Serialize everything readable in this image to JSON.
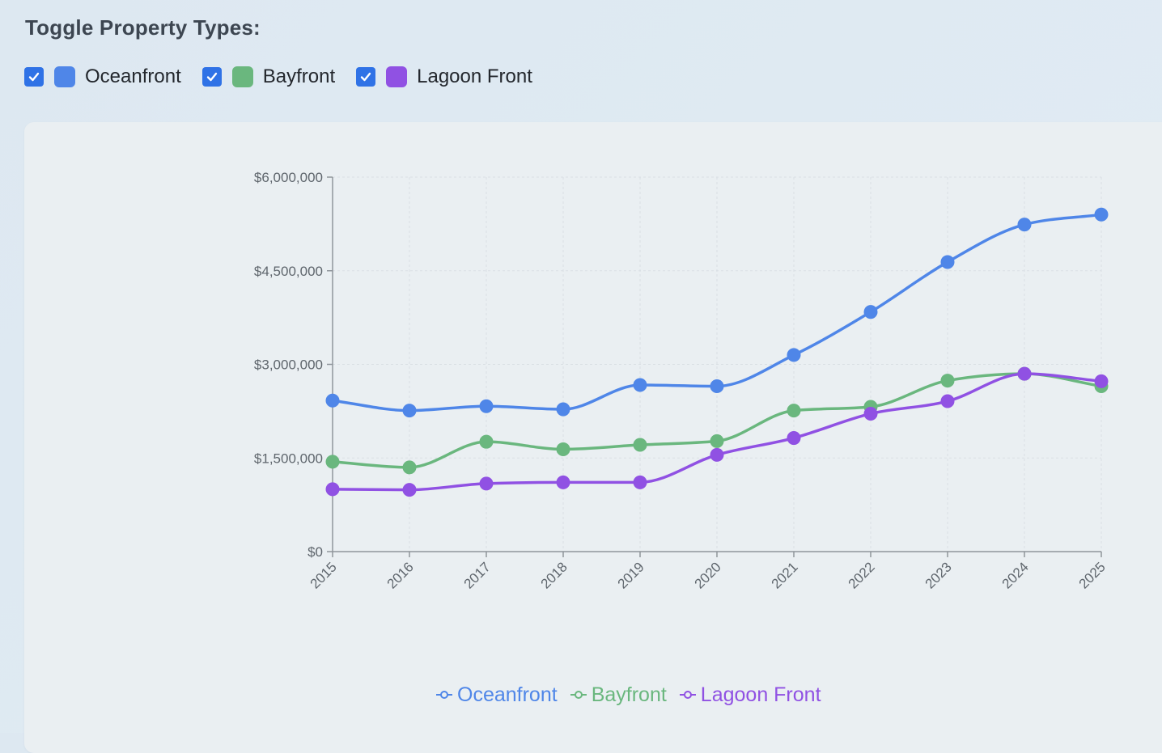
{
  "toggles": {
    "title": "Toggle Property Types:",
    "items": [
      {
        "label": "Oceanfront",
        "color": "#4f86e8",
        "checked": true
      },
      {
        "label": "Bayfront",
        "color": "#6ab77e",
        "checked": true
      },
      {
        "label": "Lagoon Front",
        "color": "#9051e3",
        "checked": true
      }
    ],
    "checkbox_color": "#2f72e6"
  },
  "chart_data": {
    "type": "line",
    "x": [
      "2015",
      "2016",
      "2017",
      "2018",
      "2019",
      "2020",
      "2021",
      "2022",
      "2023",
      "2024",
      "2025"
    ],
    "ylim": [
      0,
      6000000
    ],
    "yticks": [
      0,
      1500000,
      3000000,
      4500000,
      6000000
    ],
    "ytick_labels": [
      "$0",
      "$1,500,000",
      "$3,000,000",
      "$4,500,000",
      "$6,000,000"
    ],
    "grid": true,
    "legend": "bottom-center",
    "series": [
      {
        "name": "Oceanfront",
        "color": "#4f86e8",
        "values": [
          2420000,
          2260000,
          2330000,
          2280000,
          2670000,
          2650000,
          3150000,
          3840000,
          4640000,
          5240000,
          5400000
        ]
      },
      {
        "name": "Bayfront",
        "color": "#6ab77e",
        "values": [
          1440000,
          1350000,
          1760000,
          1640000,
          1710000,
          1770000,
          2260000,
          2320000,
          2740000,
          2850000,
          2650000
        ]
      },
      {
        "name": "Lagoon Front",
        "color": "#9051e3",
        "values": [
          1000000,
          990000,
          1090000,
          1110000,
          1110000,
          1550000,
          1820000,
          2210000,
          2410000,
          2850000,
          2730000
        ]
      }
    ]
  }
}
